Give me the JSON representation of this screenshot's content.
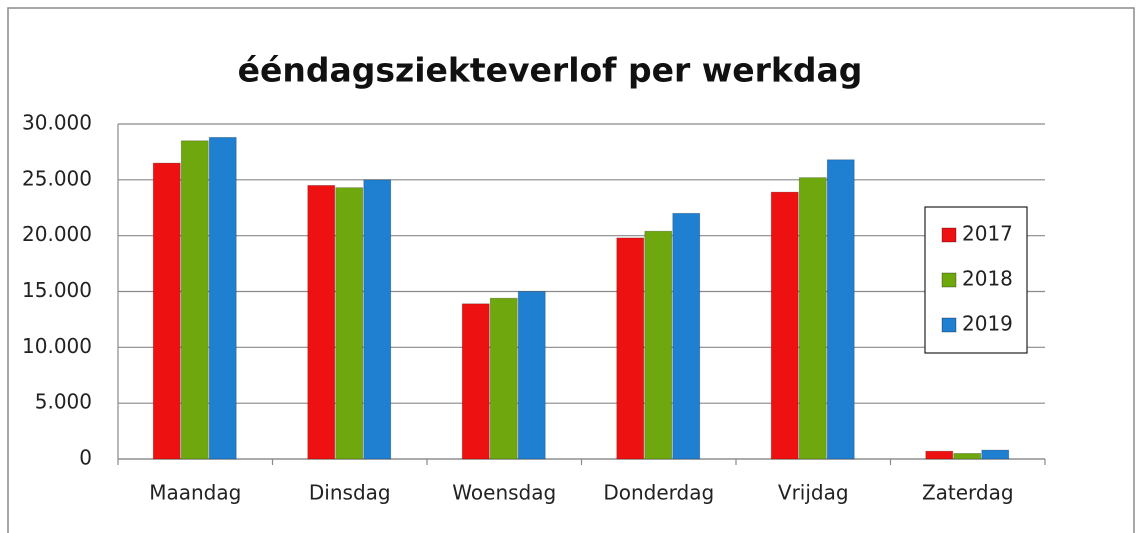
{
  "chart_data": {
    "type": "bar",
    "title": "ééndagsziekteverlof per werkdag",
    "categories": [
      "Maandag",
      "Dinsdag",
      "Woensdag",
      "Donderdag",
      "Vrijdag",
      "Zaterdag"
    ],
    "series": [
      {
        "name": "2017",
        "color": "#ee1111",
        "values": [
          26500,
          24500,
          13900,
          19800,
          23900,
          700
        ]
      },
      {
        "name": "2018",
        "color": "#6fa80e",
        "values": [
          28500,
          24300,
          14400,
          20400,
          25200,
          500
        ]
      },
      {
        "name": "2019",
        "color": "#1f7fd0",
        "values": [
          28800,
          25000,
          15000,
          22000,
          26800,
          800
        ]
      }
    ],
    "ylim": [
      0,
      30000
    ],
    "yticks": [
      0,
      {
        "value": 5000,
        "label": "5.000"
      },
      {
        "value": 10000,
        "label": "10.000"
      },
      {
        "value": 15000,
        "label": "15.000"
      },
      {
        "value": 20000,
        "label": "20.000"
      },
      {
        "value": 25000,
        "label": "25.000"
      },
      {
        "value": 30000,
        "label": "30.000"
      }
    ],
    "grid": true,
    "legend": "right"
  }
}
